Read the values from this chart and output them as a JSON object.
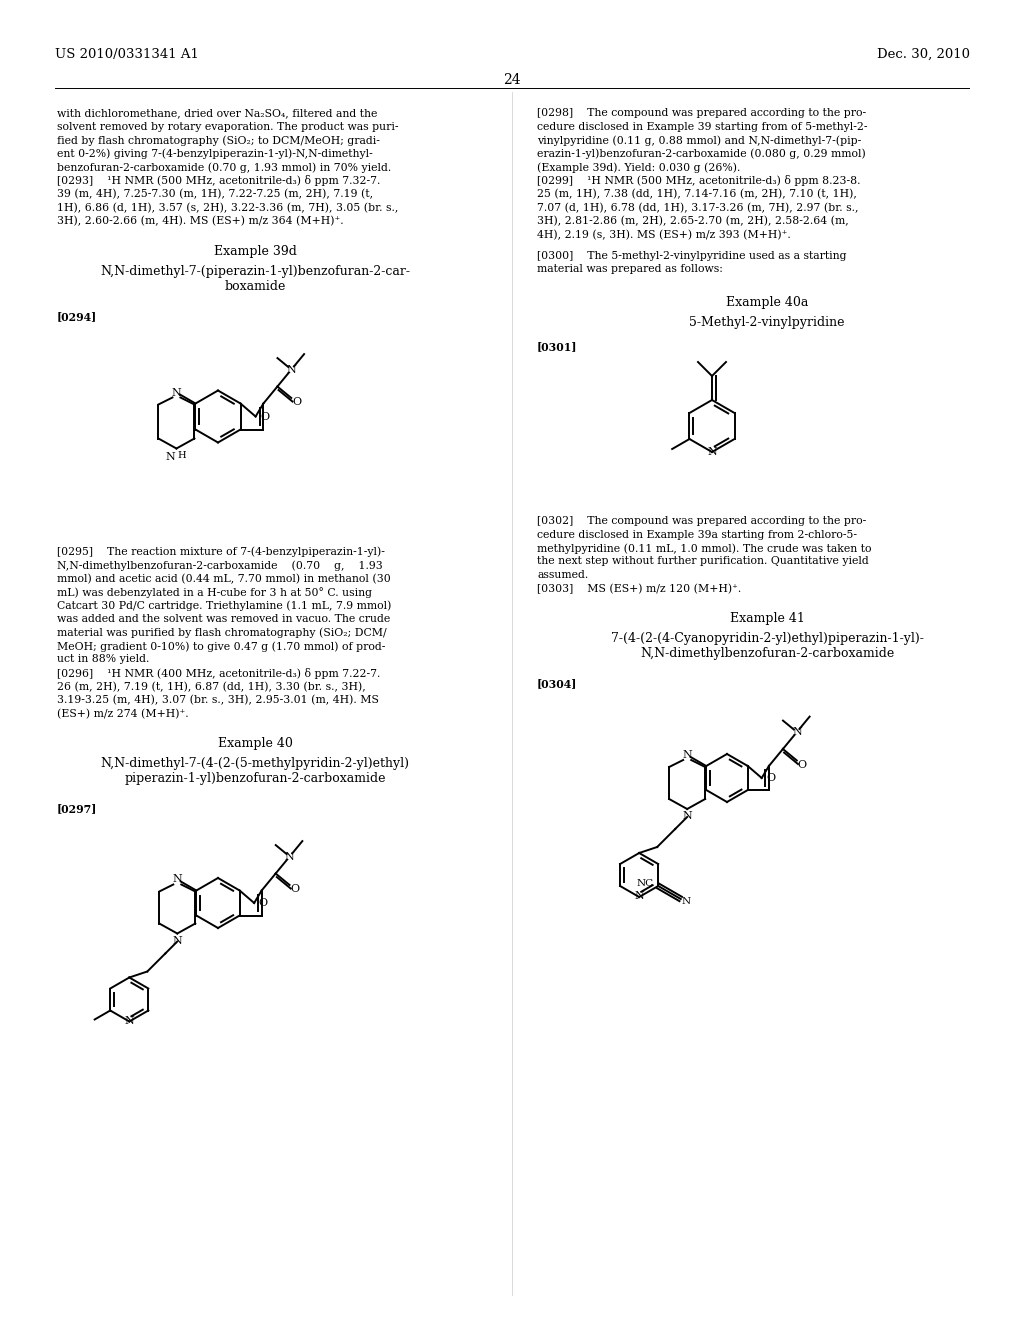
{
  "page_number": "24",
  "header_left": "US 2010/0331341 A1",
  "header_right": "Dec. 30, 2010",
  "background_color": "#ffffff",
  "text_color": "#000000",
  "body_fs": 7.8,
  "header_fs": 9.5,
  "left_col_text_1": [
    "with dichloromethane, dried over Na₂SO₄, filtered and the",
    "solvent removed by rotary evaporation. The product was puri-",
    "fied by flash chromatography (SiO₂; to DCM/MeOH; gradi-",
    "ent 0-2%) giving 7-(4-benzylpiperazin-1-yl)-N,N-dimethyl-",
    "benzofuran-2-carboxamide (0.70 g, 1.93 mmol) in 70% yield.",
    "[0293]    ¹H NMR (500 MHz, acetonitrile-d₃) δ ppm 7.32-7.",
    "39 (m, 4H), 7.25-7.30 (m, 1H), 7.22-7.25 (m, 2H), 7.19 (t,",
    "1H), 6.86 (d, 1H), 3.57 (s, 2H), 3.22-3.36 (m, 7H), 3.05 (br. s.,",
    "3H), 2.60-2.66 (m, 4H). MS (ES+) m/z 364 (M+H)⁺."
  ],
  "example_39d_title": "Example 39d",
  "example_39d_name": "N,N-dimethyl-7-(piperazin-1-yl)benzofuran-2-car-\nboxamide",
  "label_0294": "[0294]",
  "left_col_text_2": [
    "[0295]    The reaction mixture of 7-(4-benzylpiperazin-1-yl)-",
    "N,N-dimethylbenzofuran-2-carboxamide    (0.70    g,    1.93",
    "mmol) and acetic acid (0.44 mL, 7.70 mmol) in methanol (30",
    "mL) was debenzylated in a H-cube for 3 h at 50° C. using",
    "Catcart 30 Pd/C cartridge. Triethylamine (1.1 mL, 7.9 mmol)",
    "was added and the solvent was removed in vacuo. The crude",
    "material was purified by flash chromatography (SiO₂; DCM/",
    "MeOH; gradient 0-10%) to give 0.47 g (1.70 mmol) of prod-",
    "uct in 88% yield.",
    "[0296]    ¹H NMR (400 MHz, acetonitrile-d₃) δ ppm 7.22-7.",
    "26 (m, 2H), 7.19 (t, 1H), 6.87 (dd, 1H), 3.30 (br. s., 3H),",
    "3.19-3.25 (m, 4H), 3.07 (br. s., 3H), 2.95-3.01 (m, 4H). MS",
    "(ES+) m/z 274 (M+H)⁺."
  ],
  "example_40_title": "Example 40",
  "example_40_name": "N,N-dimethyl-7-(4-(2-(5-methylpyridin-2-yl)ethyl)\npiperazin-1-yl)benzofuran-2-carboxamide",
  "label_0297": "[0297]",
  "right_col_text_1": [
    "[0298]    The compound was prepared according to the pro-",
    "cedure disclosed in Example 39 starting from of 5-methyl-2-",
    "vinylpyridine (0.11 g, 0.88 mmol) and N,N-dimethyl-7-(pip-",
    "erazin-1-yl)benzofuran-2-carboxamide (0.080 g, 0.29 mmol)",
    "(Example 39d). Yield: 0.030 g (26%).",
    "[0299]    ¹H NMR (500 MHz, acetonitrile-d₃) δ ppm 8.23-8.",
    "25 (m, 1H), 7.38 (dd, 1H), 7.14-7.16 (m, 2H), 7.10 (t, 1H),",
    "7.07 (d, 1H), 6.78 (dd, 1H), 3.17-3.26 (m, 7H), 2.97 (br. s.,",
    "3H), 2.81-2.86 (m, 2H), 2.65-2.70 (m, 2H), 2.58-2.64 (m,",
    "4H), 2.19 (s, 3H). MS (ES+) m/z 393 (M+H)⁺."
  ],
  "label_0300_line1": "[0300]    The 5-methyl-2-vinylpyridine used as a starting",
  "label_0300_line2": "material was prepared as follows:",
  "example_40a_title": "Example 40a",
  "example_40a_name": "5-Methyl-2-vinylpyridine",
  "label_0301": "[0301]",
  "right_col_text_2": [
    "[0302]    The compound was prepared according to the pro-",
    "cedure disclosed in Example 39a starting from 2-chloro-5-",
    "methylpyridine (0.11 mL, 1.0 mmol). The crude was taken to",
    "the next step without further purification. Quantitative yield",
    "assumed.",
    "[0303]    MS (ES+) m/z 120 (M+H)⁺."
  ],
  "example_41_title": "Example 41",
  "example_41_name": "7-(4-(2-(4-Cyanopyridin-2-yl)ethyl)piperazin-1-yl)-\nN,N-dimethylbenzofuran-2-carboxamide",
  "label_0304": "[0304]"
}
